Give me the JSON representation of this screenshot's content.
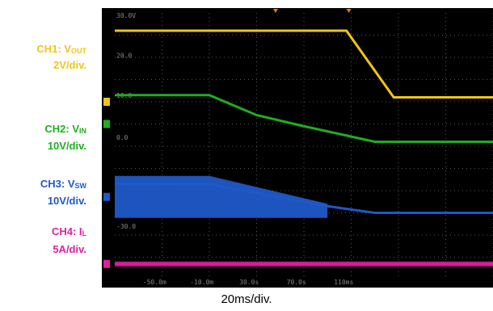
{
  "channels": [
    {
      "name": "CH1: V",
      "sub": "OUT",
      "scale": "2V/div.",
      "color": "#f0c419"
    },
    {
      "name": "CH2: V",
      "sub": "IN",
      "scale": "10V/div.",
      "color": "#1fae1f"
    },
    {
      "name": "CH3: V",
      "sub": "SW",
      "scale": "10V/div.",
      "color": "#1f59c8"
    },
    {
      "name": "CH4: I",
      "sub": "L",
      "scale": "5A/div.",
      "color": "#e01fa0"
    }
  ],
  "timebase": "20ms/div.",
  "chart_data": {
    "type": "line",
    "background": "#000000",
    "xlabel": "20ms/div.",
    "ylabel": "",
    "x_tick_labels": [
      "-50.0m",
      "-10.0m",
      "30.0s",
      "70.0s",
      "110ms"
    ],
    "y_tick_labels": [
      "30.0V",
      "20.0",
      "10.0",
      "0.0",
      "-30.0"
    ],
    "series": [
      {
        "name": "CH1: VOUT",
        "color": "#f0c419",
        "x": [
          -70,
          28,
          48,
          90
        ],
        "y": [
          7.2,
          7.2,
          4.2,
          4.2
        ]
      },
      {
        "name": "CH2: VIN",
        "color": "#1fae1f",
        "x": [
          -70,
          -30,
          -10,
          10,
          40,
          90
        ],
        "y": [
          4.3,
          4.3,
          3.4,
          2.9,
          2.2,
          2.2
        ]
      },
      {
        "name": "CH3: VSW",
        "color": "#1f59c8",
        "x": [
          -70,
          -30,
          20,
          40,
          90
        ],
        "y": [
          0.3,
          0.3,
          -0.7,
          -1.0,
          -1.0
        ]
      },
      {
        "name": "CH4: IL",
        "color": "#e01fa0",
        "x": [
          -70,
          90
        ],
        "y": [
          -3.3,
          -3.3
        ]
      }
    ]
  }
}
